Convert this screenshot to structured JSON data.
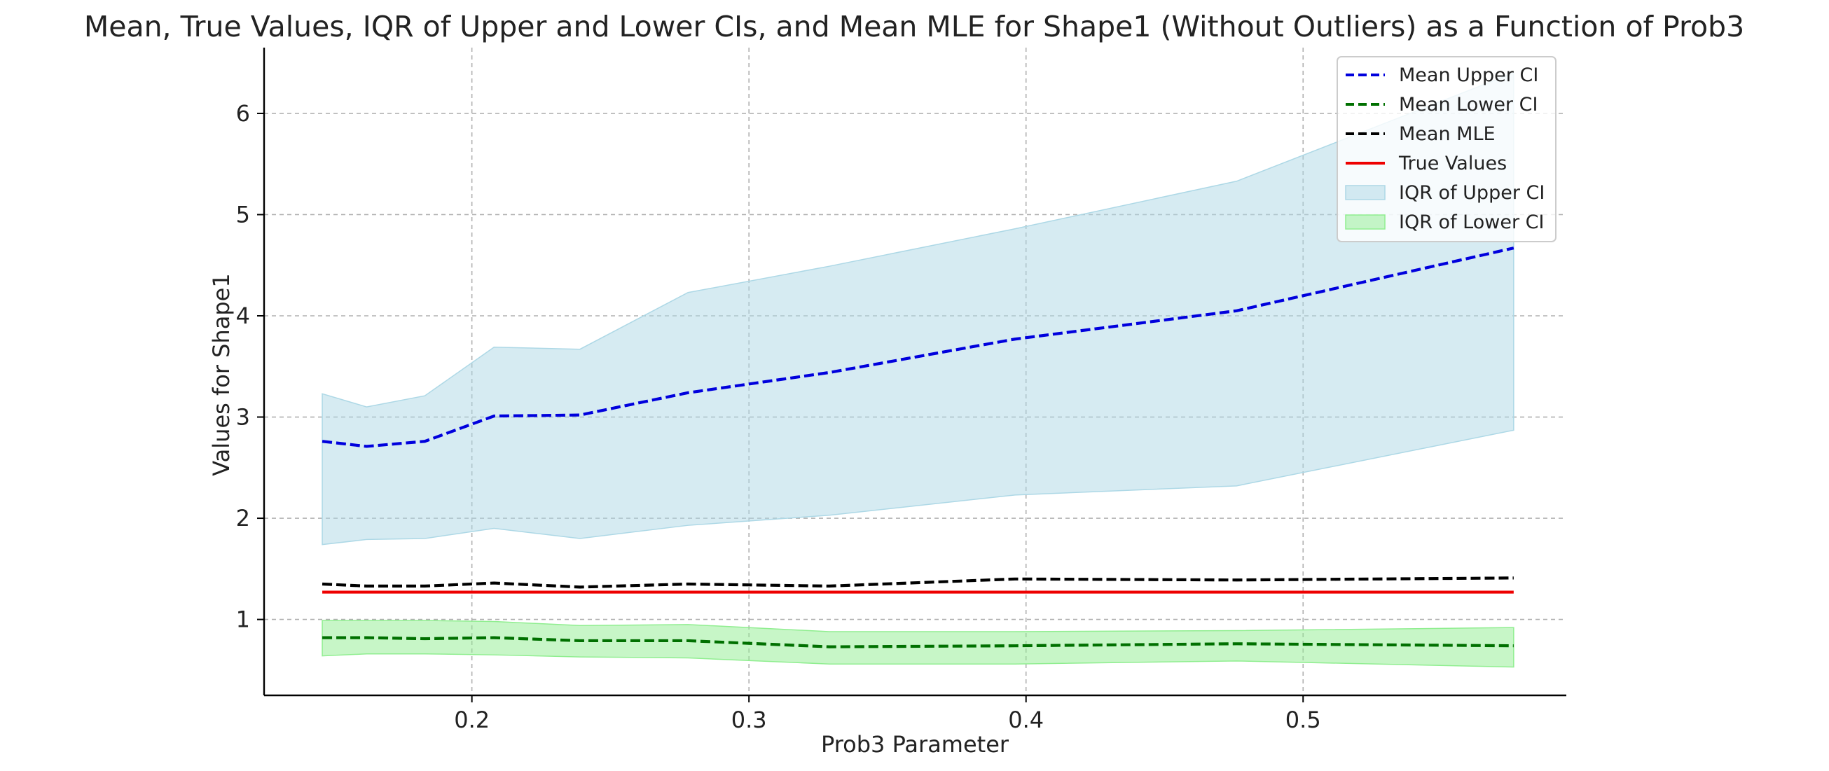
{
  "chart_data": {
    "type": "line",
    "title": "Mean, True Values, IQR of Upper and Lower CIs, and Mean MLE for Shape1 (Without Outliers) as a Function of Prob3",
    "xlabel": "Prob3 Parameter",
    "ylabel": "Values for Shape1",
    "xlim": [
      0.125,
      0.595
    ],
    "ylim": [
      0.25,
      6.65
    ],
    "xticks": [
      0.2,
      0.3,
      0.4,
      0.5
    ],
    "xtick_labels": [
      "0.2",
      "0.3",
      "0.4",
      "0.5"
    ],
    "yticks": [
      1,
      2,
      3,
      4,
      5,
      6
    ],
    "ytick_labels": [
      "1",
      "2",
      "3",
      "4",
      "5",
      "6"
    ],
    "grid": true,
    "legend_position": "top-right",
    "x": [
      0.146,
      0.162,
      0.183,
      0.208,
      0.239,
      0.278,
      0.329,
      0.396,
      0.476,
      0.576
    ],
    "series": [
      {
        "name": "Mean Upper CI",
        "kind": "line",
        "style": "dashed",
        "color": "#0000dd",
        "values": [
          2.76,
          2.71,
          2.76,
          3.01,
          3.02,
          3.24,
          3.44,
          3.77,
          4.05,
          4.67
        ]
      },
      {
        "name": "Mean Lower CI",
        "kind": "line",
        "style": "dashed",
        "color": "#007000",
        "values": [
          0.82,
          0.82,
          0.81,
          0.82,
          0.79,
          0.79,
          0.73,
          0.74,
          0.76,
          0.74
        ]
      },
      {
        "name": "Mean MLE",
        "kind": "line",
        "style": "dashed",
        "color": "#000000",
        "values": [
          1.35,
          1.33,
          1.33,
          1.36,
          1.32,
          1.35,
          1.33,
          1.4,
          1.39,
          1.41
        ]
      },
      {
        "name": "True Values",
        "kind": "line",
        "style": "solid",
        "color": "#ee0000",
        "values": [
          1.27,
          1.27,
          1.27,
          1.27,
          1.27,
          1.27,
          1.27,
          1.27,
          1.27,
          1.27
        ]
      },
      {
        "name": "IQR of Upper CI",
        "kind": "band",
        "color": "#add8e6",
        "lower": [
          1.74,
          1.79,
          1.8,
          1.9,
          1.8,
          1.93,
          2.03,
          2.23,
          2.32,
          2.87
        ],
        "upper": [
          3.23,
          3.1,
          3.21,
          3.69,
          3.67,
          4.23,
          4.49,
          4.86,
          5.33,
          6.4
        ]
      },
      {
        "name": "IQR of Lower CI",
        "kind": "band",
        "color": "#90ee90",
        "lower": [
          0.64,
          0.66,
          0.66,
          0.65,
          0.63,
          0.62,
          0.56,
          0.56,
          0.59,
          0.53
        ],
        "upper": [
          0.99,
          0.99,
          0.99,
          0.98,
          0.94,
          0.95,
          0.88,
          0.88,
          0.89,
          0.92
        ]
      }
    ],
    "legend_order": [
      "Mean Upper CI",
      "Mean Lower CI",
      "Mean MLE",
      "True Values",
      "IQR of Upper CI",
      "IQR of Lower CI"
    ]
  }
}
